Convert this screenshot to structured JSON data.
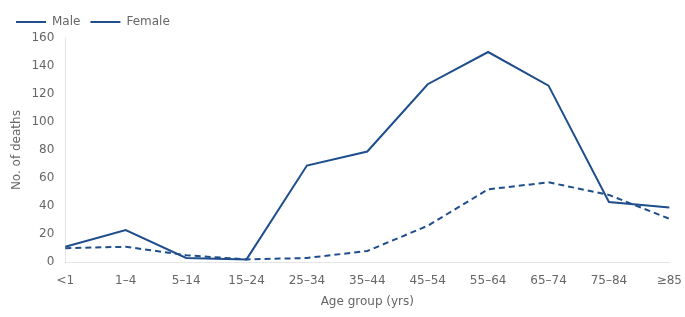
{
  "chart_data": {
    "type": "line",
    "categories": [
      "<1",
      "1–4",
      "5–14",
      "15–24",
      "25–34",
      "35–44",
      "45–54",
      "55–64",
      "65–74",
      "75–84",
      "≥85"
    ],
    "series": [
      {
        "name": "Male",
        "color": "#1f4e8c",
        "line_style": "solid",
        "values": [
          11,
          23,
          3,
          2,
          69,
          79,
          127,
          150,
          126,
          43,
          39
        ]
      },
      {
        "name": "Female",
        "color": "#1f4e8c",
        "line_style": "dashed",
        "values": [
          10,
          11,
          5,
          2,
          3,
          8,
          26,
          52,
          57,
          48,
          31
        ]
      }
    ],
    "xlabel": "Age group (yrs)",
    "ylabel": "No. of deaths",
    "ylim": [
      0,
      160
    ],
    "yticks": [
      0,
      20,
      40,
      60,
      80,
      100,
      120,
      140,
      160
    ],
    "grid": false,
    "legend": "upper left"
  }
}
